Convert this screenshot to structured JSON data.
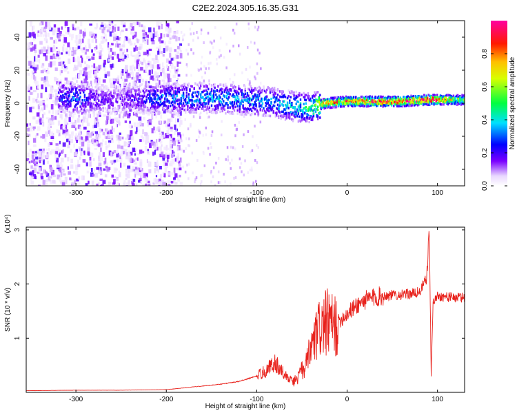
{
  "title": "C2E2.2024.305.16.35.G31",
  "chart_data": [
    {
      "type": "heatmap",
      "xlabel": "Height of straight line (km)",
      "ylabel": "Frequency (Hz)",
      "xlim": [
        -355,
        130
      ],
      "ylim": [
        -50,
        50
      ],
      "xticks": [
        -300,
        -200,
        -100,
        0,
        100
      ],
      "yticks": [
        -40,
        -20,
        0,
        20,
        40
      ],
      "colorbar": {
        "label": "Normalized spectral amplitude",
        "range": [
          0,
          1
        ],
        "ticks": [
          "0.0",
          "0.2",
          "0.4",
          "0.6",
          "0.8"
        ],
        "tick_values": [
          0.0,
          0.2,
          0.4,
          0.6,
          0.8
        ],
        "colormap": "rainbow (white-violet-blue-cyan-green-yellow-red-magenta)"
      },
      "ridge": [
        {
          "x": -315,
          "freq": 3,
          "amp": 0.25
        },
        {
          "x": -300,
          "freq": 3,
          "amp": 0.35
        },
        {
          "x": -280,
          "freq": 2,
          "amp": 0.2
        },
        {
          "x": -250,
          "freq": 2,
          "amp": 0.15
        },
        {
          "x": -210,
          "freq": 3,
          "amp": 0.3
        },
        {
          "x": -180,
          "freq": 3,
          "amp": 0.35
        },
        {
          "x": -150,
          "freq": 3,
          "amp": 0.35
        },
        {
          "x": -120,
          "freq": 2,
          "amp": 0.35
        },
        {
          "x": -90,
          "freq": 1,
          "amp": 0.35
        },
        {
          "x": -60,
          "freq": -2,
          "amp": 0.4
        },
        {
          "x": -40,
          "freq": -3,
          "amp": 0.5
        },
        {
          "x": -25,
          "freq": 0,
          "amp": 0.8
        },
        {
          "x": 0,
          "freq": 1,
          "amp": 0.8
        },
        {
          "x": 30,
          "freq": 1,
          "amp": 0.9
        },
        {
          "x": 60,
          "freq": 1,
          "amp": 0.9
        },
        {
          "x": 85,
          "freq": 2,
          "amp": 0.95
        },
        {
          "x": 95,
          "freq": 2,
          "amp": 0.95
        },
        {
          "x": 120,
          "freq": 2,
          "amp": 0.6
        }
      ],
      "noise_band": {
        "x_from": -355,
        "x_to": -185,
        "freq_range": [
          -50,
          50
        ]
      }
    },
    {
      "type": "line",
      "xlabel": "Height of straight line (km)",
      "ylabel": "SNR (10 * v/v)",
      "yscale_label": "(x10⁴)",
      "xlim": [
        -355,
        130
      ],
      "ylim": [
        0,
        3.05
      ],
      "xticks": [
        -300,
        -200,
        -100,
        0,
        100
      ],
      "yticks": [
        1,
        2,
        3
      ],
      "color": "#e8221c",
      "series": [
        {
          "x": [
            -355,
            -300,
            -250,
            -200,
            -170,
            -140,
            -120,
            -100,
            -90,
            -80,
            -70,
            -60,
            -55,
            -50,
            -45,
            -40,
            -35,
            -30,
            -25,
            -20,
            -15,
            -10,
            0,
            10,
            20,
            30,
            40,
            50,
            60,
            70,
            80,
            88,
            91,
            93,
            95,
            100,
            110,
            120,
            130
          ],
          "y": [
            0.03,
            0.04,
            0.04,
            0.05,
            0.1,
            0.15,
            0.2,
            0.3,
            0.4,
            0.55,
            0.35,
            0.2,
            0.25,
            0.4,
            0.5,
            0.8,
            1.0,
            1.2,
            1.25,
            1.3,
            1.2,
            1.3,
            1.45,
            1.6,
            1.7,
            1.75,
            1.78,
            1.8,
            1.8,
            1.82,
            1.85,
            2.1,
            3.0,
            0.3,
            1.65,
            1.78,
            1.76,
            1.75,
            1.75
          ]
        }
      ]
    }
  ]
}
